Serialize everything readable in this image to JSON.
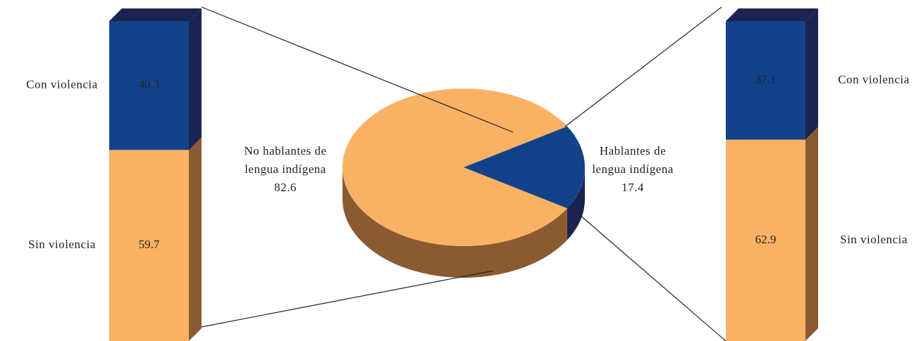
{
  "chart_data": [
    {
      "type": "bar",
      "stacked": true,
      "categories": [
        null
      ],
      "ylim": [
        0,
        100
      ],
      "series": [
        {
          "name": "Con violencia",
          "color": "#12438a",
          "values": [
            40.3
          ]
        },
        {
          "name": "Sin violencia",
          "color": "#f9b264",
          "values": [
            59.7
          ]
        }
      ]
    },
    {
      "type": "pie",
      "categories": [
        "No hablantes de lengua indígena",
        "Hablantes de lengua indígena"
      ],
      "values": [
        82.6,
        17.4
      ],
      "colors": [
        "#f9b264",
        "#12438a"
      ]
    },
    {
      "type": "bar",
      "stacked": true,
      "categories": [
        null
      ],
      "ylim": [
        0,
        100
      ],
      "series": [
        {
          "name": "Con violencia",
          "color": "#12438a",
          "values": [
            37.1
          ]
        },
        {
          "name": "Sin violencia",
          "color": "#f9b264",
          "values": [
            62.9
          ]
        }
      ]
    }
  ]
}
